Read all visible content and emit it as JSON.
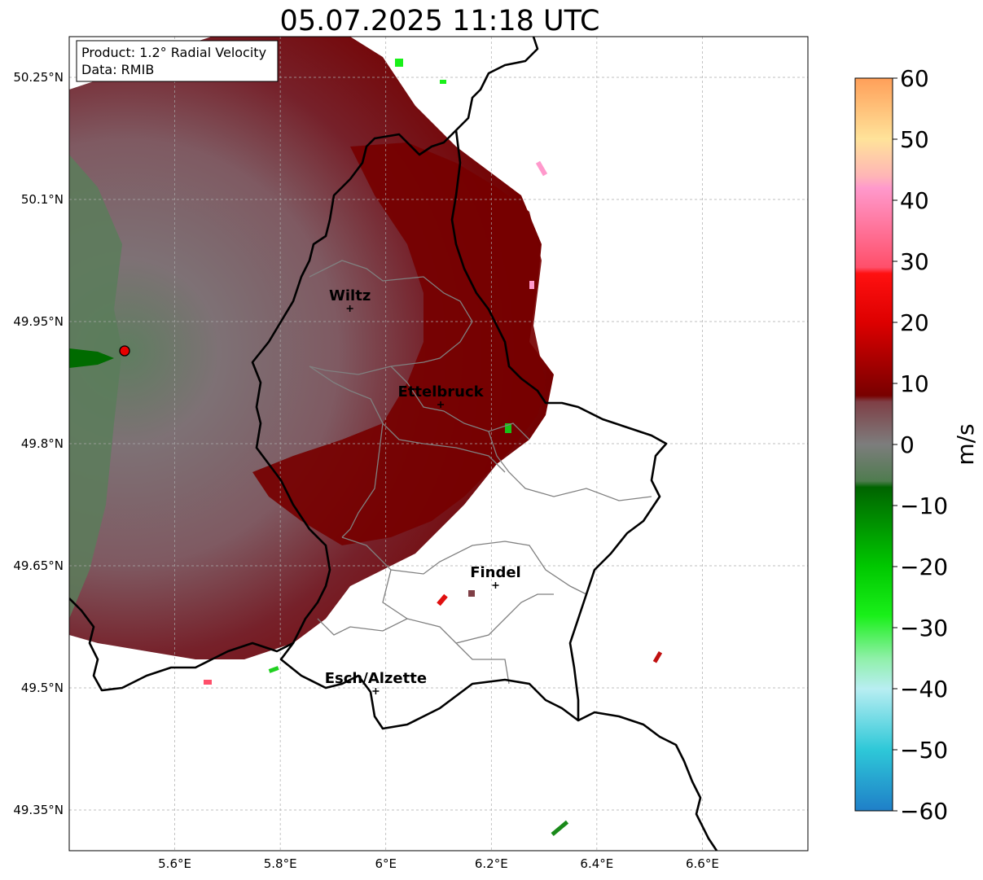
{
  "title": "05.07.2025 11:18 UTC",
  "info_box": {
    "line1": "Product: 1.2° Radial Velocity",
    "line2": "Data: RMIB"
  },
  "map": {
    "lon_range": [
      5.4,
      6.8
    ],
    "lat_range": [
      49.3,
      50.3
    ],
    "lon_ticks": [
      {
        "value": 5.6,
        "label": "5.6°E"
      },
      {
        "value": 5.8,
        "label": "5.8°E"
      },
      {
        "value": 6.0,
        "label": "6°E"
      },
      {
        "value": 6.2,
        "label": "6.2°E"
      },
      {
        "value": 6.4,
        "label": "6.4°E"
      },
      {
        "value": 6.6,
        "label": "6.6°E"
      }
    ],
    "lat_ticks": [
      {
        "value": 50.25,
        "label": "50.25°N"
      },
      {
        "value": 50.1,
        "label": "50.1°N"
      },
      {
        "value": 49.95,
        "label": "49.95°N"
      },
      {
        "value": 49.8,
        "label": "49.8°N"
      },
      {
        "value": 49.65,
        "label": "49.65°N"
      },
      {
        "value": 49.5,
        "label": "49.5°N"
      },
      {
        "value": 49.35,
        "label": "49.35°N"
      }
    ],
    "radar_site": {
      "lon": 5.505,
      "lat": 49.914
    },
    "cities": [
      {
        "name": "Wiltz",
        "lon": 5.932,
        "lat": 49.966
      },
      {
        "name": "Ettelbruck",
        "lon": 6.104,
        "lat": 49.848
      },
      {
        "name": "Findel",
        "lon": 6.208,
        "lat": 49.626
      },
      {
        "name": "Esch/Alzette",
        "lon": 5.981,
        "lat": 49.496
      }
    ]
  },
  "colorbar": {
    "label": "m/s",
    "vmin": -60,
    "vmax": 60,
    "ticks": [
      {
        "value": 60,
        "label": "60"
      },
      {
        "value": 50,
        "label": "50"
      },
      {
        "value": 40,
        "label": "40"
      },
      {
        "value": 30,
        "label": "30"
      },
      {
        "value": 20,
        "label": "20"
      },
      {
        "value": 10,
        "label": "10"
      },
      {
        "value": 0,
        "label": "0"
      },
      {
        "value": -10,
        "label": "−10"
      },
      {
        "value": -20,
        "label": "−20"
      },
      {
        "value": -30,
        "label": "−30"
      },
      {
        "value": -40,
        "label": "−40"
      },
      {
        "value": -50,
        "label": "−50"
      },
      {
        "value": -60,
        "label": "−60"
      }
    ],
    "color_stops": [
      {
        "value": -60,
        "color": "#1f7fc8"
      },
      {
        "value": -50,
        "color": "#2ec8d8"
      },
      {
        "value": -40,
        "color": "#b8eef2"
      },
      {
        "value": -35,
        "color": "#8ff0a8"
      },
      {
        "value": -28,
        "color": "#19f019"
      },
      {
        "value": -20,
        "color": "#00c800"
      },
      {
        "value": -7,
        "color": "#006400"
      },
      {
        "value": -6,
        "color": "#4f7c4f"
      },
      {
        "value": 0,
        "color": "#7d7d7d"
      },
      {
        "value": 7,
        "color": "#7f3f46"
      },
      {
        "value": 8,
        "color": "#780000"
      },
      {
        "value": 20,
        "color": "#dd0000"
      },
      {
        "value": 28,
        "color": "#ff1010"
      },
      {
        "value": 29,
        "color": "#ff4f6a"
      },
      {
        "value": 42,
        "color": "#ff99cc"
      },
      {
        "value": 44,
        "color": "#ffb6b6"
      },
      {
        "value": 50,
        "color": "#ffe39a"
      },
      {
        "value": 60,
        "color": "#ff9f59"
      }
    ]
  }
}
